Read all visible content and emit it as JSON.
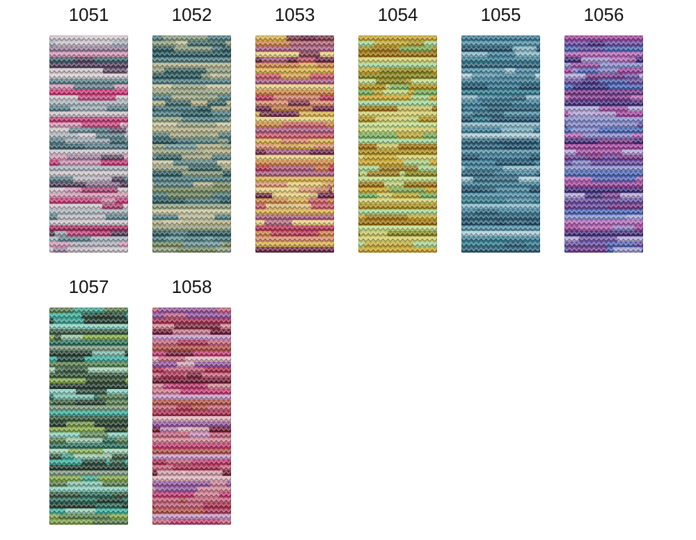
{
  "page": {
    "background": "#ffffff"
  },
  "shade_card": {
    "rows": [
      {
        "swatches": [
          {
            "label": "1051",
            "palette": [
              "#cfc6cc",
              "#d9cfd3",
              "#d49ab5",
              "#c43a74",
              "#a53061",
              "#5c7f89",
              "#3f646e",
              "#55415c",
              "#967d9a",
              "#a9b5bd"
            ],
            "stripes": [
              "#cfc6cc",
              "#a9b5bd",
              "#967d9a",
              "#d49ab5",
              "#3f646e",
              "#55415c",
              "#cfc6cc",
              "#d9cfd3",
              "#5c7f89",
              "#d49ab5",
              "#c43a74",
              "#cfc6cc",
              "#a9b5bd",
              "#5c7f89",
              "#cfc6cc",
              "#c43a74",
              "#d49ab5",
              "#cfc6cc",
              "#a9b5bd",
              "#5c7f89",
              "#3f646e",
              "#cfc6cc",
              "#d49ab5",
              "#c43a74",
              "#a9b5bd",
              "#cfc6cc",
              "#5c7f89",
              "#55415c",
              "#cfc6cc",
              "#d49ab5",
              "#c43a74",
              "#cfc6cc",
              "#a9b5bd",
              "#5c7f89",
              "#cfc6cc",
              "#a53061",
              "#55415c",
              "#a9b5bd",
              "#d49ab5",
              "#cfc6cc"
            ]
          },
          {
            "label": "1052",
            "palette": [
              "#2e5a60",
              "#4f7d82",
              "#6f98a0",
              "#93a183",
              "#b3b08a",
              "#c9c4a0",
              "#76885f"
            ],
            "stripes": [
              "#4f7d82",
              "#93a183",
              "#2e5a60",
              "#2e5a60",
              "#4f7d82",
              "#b3b08a",
              "#93a183",
              "#2e5a60",
              "#4f7d82",
              "#c9c4a0",
              "#93a183",
              "#4f7d82",
              "#b3b08a",
              "#2e5a60",
              "#4f7d82",
              "#93a183",
              "#c9c4a0",
              "#b3b08a",
              "#4f7d82",
              "#2e5a60",
              "#93a183",
              "#b3b08a",
              "#4f7d82",
              "#c9c4a0",
              "#93a183",
              "#2e5a60",
              "#4f7d82",
              "#b3b08a",
              "#76885f",
              "#4f7d82",
              "#2e5a60",
              "#93a183",
              "#c9c4a0",
              "#4f7d82",
              "#b3b08a",
              "#93a183",
              "#2e5a60",
              "#4f7d82",
              "#76885f",
              "#93a183"
            ]
          },
          {
            "label": "1053",
            "palette": [
              "#d9b250",
              "#e8d184",
              "#cc8547",
              "#d89070",
              "#c95a6a",
              "#aa5f80",
              "#6e2d4c",
              "#b8385a"
            ],
            "stripes": [
              "#d9b250",
              "#cc8547",
              "#aa5f80",
              "#e8d184",
              "#6e2d4c",
              "#cc8547",
              "#d9b250",
              "#c95a6a",
              "#aa5f80",
              "#e8d184",
              "#cc8547",
              "#b8385a",
              "#d89070",
              "#6e2d4c",
              "#d9b250",
              "#e8d184",
              "#cc8547",
              "#aa5f80",
              "#c95a6a",
              "#d9b250",
              "#d89070",
              "#6e2d4c",
              "#e8d184",
              "#cc8547",
              "#b8385a",
              "#aa5f80",
              "#d9b250",
              "#d89070",
              "#e8d184",
              "#6e2d4c",
              "#cc8547",
              "#c95a6a",
              "#d9b250",
              "#aa5f80",
              "#e8d184",
              "#b8385a",
              "#cc8547",
              "#d89070",
              "#d9b250",
              "#6e2d4c"
            ]
          },
          {
            "label": "1054",
            "palette": [
              "#a6d598",
              "#c2dc8d",
              "#d4d073",
              "#c9a52f",
              "#a98c1f",
              "#9c7015",
              "#878420",
              "#74ab5f"
            ],
            "stripes": [
              "#c9a52f",
              "#a6d598",
              "#a98c1f",
              "#9c7015",
              "#d4d073",
              "#a6d598",
              "#c9a52f",
              "#878420",
              "#c2dc8d",
              "#a98c1f",
              "#74ab5f",
              "#c9a52f",
              "#a6d598",
              "#9c7015",
              "#d4d073",
              "#a98c1f",
              "#c2dc8d",
              "#c9a52f",
              "#74ab5f",
              "#a6d598",
              "#9c7015",
              "#a98c1f",
              "#d4d073",
              "#c9a52f",
              "#a6d598",
              "#878420",
              "#c2dc8d",
              "#9c7015",
              "#c9a52f",
              "#74ab5f",
              "#d4d073",
              "#a98c1f",
              "#a6d598",
              "#c9a52f",
              "#9c7015",
              "#c2dc8d",
              "#878420",
              "#d4d073",
              "#a6d598",
              "#c9a52f"
            ]
          },
          {
            "label": "1055",
            "palette": [
              "#25506a",
              "#2f6077",
              "#3f7d96",
              "#5590a6",
              "#8ab7c6",
              "#aecdd8",
              "#357c8e"
            ],
            "stripes": [
              "#3f7d96",
              "#5590a6",
              "#25506a",
              "#8ab7c6",
              "#3f7d96",
              "#2f6077",
              "#5590a6",
              "#aecdd8",
              "#3f7d96",
              "#25506a",
              "#357c8e",
              "#8ab7c6",
              "#3f7d96",
              "#2f6077",
              "#5590a6",
              "#25506a",
              "#8ab7c6",
              "#3f7d96",
              "#aecdd8",
              "#357c8e",
              "#2f6077",
              "#5590a6",
              "#25506a",
              "#3f7d96",
              "#8ab7c6",
              "#2f6077",
              "#aecdd8",
              "#3f7d96",
              "#25506a",
              "#5590a6",
              "#357c8e",
              "#8ab7c6",
              "#3f7d96",
              "#2f6077",
              "#25506a",
              "#5590a6",
              "#aecdd8",
              "#3f7d96",
              "#357c8e",
              "#2f6077"
            ]
          },
          {
            "label": "1056",
            "palette": [
              "#43307a",
              "#6a4fa0",
              "#a0489c",
              "#b468b4",
              "#4a67b4",
              "#8890cc",
              "#b2a8d8",
              "#7a3a88"
            ],
            "stripes": [
              "#a0489c",
              "#6a4fa0",
              "#4a67b4",
              "#b468b4",
              "#43307a",
              "#8890cc",
              "#a0489c",
              "#b2a8d8",
              "#6a4fa0",
              "#4a67b4",
              "#7a3a88",
              "#b468b4",
              "#43307a",
              "#b2a8d8",
              "#a0489c",
              "#8890cc",
              "#6a4fa0",
              "#4a67b4",
              "#b468b4",
              "#43307a",
              "#a0489c",
              "#b2a8d8",
              "#7a3a88",
              "#6a4fa0",
              "#8890cc",
              "#4a67b4",
              "#b468b4",
              "#a0489c",
              "#43307a",
              "#b2a8d8",
              "#6a4fa0",
              "#7a3a88",
              "#4a67b4",
              "#8890cc",
              "#b468b4",
              "#a0489c",
              "#43307a",
              "#b2a8d8",
              "#6a4fa0",
              "#4a67b4"
            ]
          }
        ]
      },
      {
        "swatches": [
          {
            "label": "1057",
            "palette": [
              "#2b4034",
              "#3c5a42",
              "#5d8052",
              "#85a84c",
              "#7e9a80",
              "#3fae9e",
              "#8ecfc0",
              "#2f6e5e",
              "#a8d4b8"
            ],
            "stripes": [
              "#5d8052",
              "#3fae9e",
              "#2b4034",
              "#8ecfc0",
              "#3c5a42",
              "#85a84c",
              "#2f6e5e",
              "#7e9a80",
              "#2b4034",
              "#3fae9e",
              "#5d8052",
              "#a8d4b8",
              "#3c5a42",
              "#85a84c",
              "#2b4034",
              "#8ecfc0",
              "#2f6e5e",
              "#5d8052",
              "#7e9a80",
              "#3fae9e",
              "#3c5a42",
              "#2b4034",
              "#85a84c",
              "#8ecfc0",
              "#5d8052",
              "#2f6e5e",
              "#a8d4b8",
              "#3c5a42",
              "#3fae9e",
              "#2b4034",
              "#7e9a80",
              "#85a84c",
              "#5d8052",
              "#8ecfc0",
              "#3c5a42",
              "#2f6e5e",
              "#2b4034",
              "#3fae9e",
              "#85a84c",
              "#5d8052"
            ]
          },
          {
            "label": "1058",
            "palette": [
              "#6f2038",
              "#a83050",
              "#c4667e",
              "#d28a98",
              "#b05548",
              "#c03c72",
              "#9458a0",
              "#c898c8",
              "#e0b6be"
            ],
            "stripes": [
              "#c4667e",
              "#9458a0",
              "#a83050",
              "#d28a98",
              "#6f2038",
              "#c898c8",
              "#c4667e",
              "#b05548",
              "#c03c72",
              "#e0b6be",
              "#9458a0",
              "#a83050",
              "#c4667e",
              "#6f2038",
              "#d28a98",
              "#c03c72",
              "#c898c8",
              "#b05548",
              "#c4667e",
              "#a83050",
              "#e0b6be",
              "#9458a0",
              "#6f2038",
              "#c4667e",
              "#d28a98",
              "#c03c72",
              "#b05548",
              "#c898c8",
              "#a83050",
              "#c4667e",
              "#6f2038",
              "#e0b6be",
              "#9458a0",
              "#d28a98",
              "#c03c72",
              "#c4667e",
              "#a83050",
              "#b05548",
              "#c898c8",
              "#c4667e"
            ]
          }
        ]
      }
    ]
  }
}
